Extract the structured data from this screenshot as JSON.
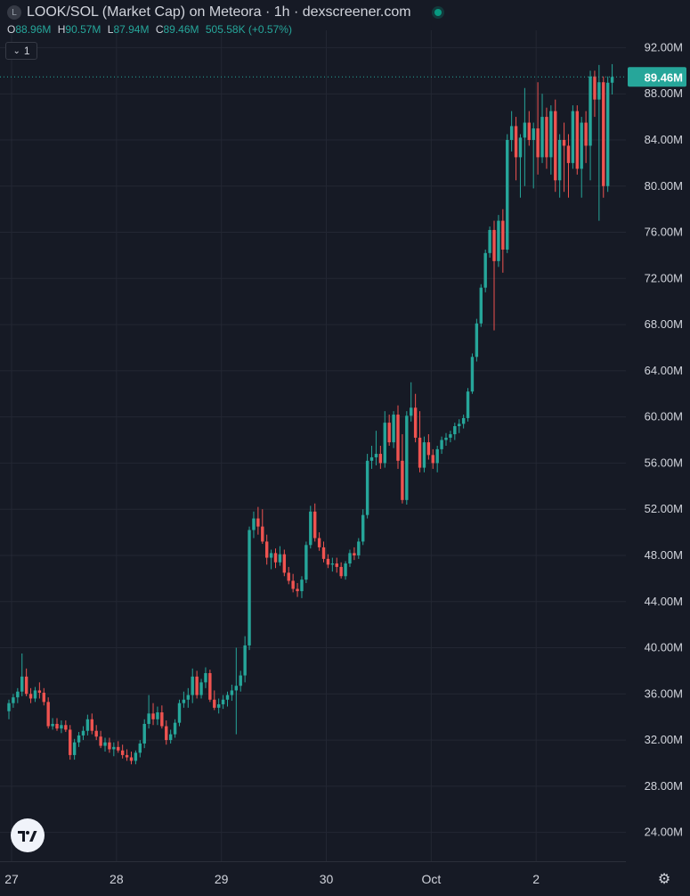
{
  "header": {
    "symbol_icon": "L",
    "title": "LOOK/SOL (Market Cap) on Meteora · 1h · dexscreener.com",
    "status_color": "#089981"
  },
  "ohlc": {
    "o_label": "O",
    "o_value": "88.96M",
    "h_label": "H",
    "h_value": "90.57M",
    "l_label": "L",
    "l_value": "87.94M",
    "c_label": "C",
    "c_value": "89.46M",
    "change": "505.58K (+0.57%)"
  },
  "indicator_toggle": {
    "count": "1",
    "icon": "chevron-down-icon"
  },
  "logo": {
    "icon": "tradingview-logo-icon"
  },
  "settings": {
    "icon": "gear-icon"
  },
  "chart_data": {
    "type": "candlestick",
    "colors": {
      "up": "#26a69a",
      "down": "#ef5350",
      "background": "#161a25",
      "grid": "#232733",
      "last_price_label": "#26a69a"
    },
    "yaxis": {
      "unit": "M",
      "ylim": [
        21.5,
        93.5
      ],
      "ticks": [
        24,
        28,
        32,
        36,
        40,
        44,
        48,
        52,
        56,
        60,
        64,
        68,
        72,
        76,
        80,
        84,
        88,
        92
      ],
      "tick_labels": [
        "24.00M",
        "28.00M",
        "32.00M",
        "36.00M",
        "40.00M",
        "44.00M",
        "48.00M",
        "52.00M",
        "56.00M",
        "60.00M",
        "64.00M",
        "68.00M",
        "72.00M",
        "76.00M",
        "80.00M",
        "84.00M",
        "88.00M",
        "92.00M"
      ],
      "position": "right"
    },
    "xaxis": {
      "ticks": [
        {
          "label": "27",
          "index": 0
        },
        {
          "label": "28",
          "index": 24
        },
        {
          "label": "29",
          "index": 48
        },
        {
          "label": "30",
          "index": 72
        },
        {
          "label": "Oct",
          "index": 96
        },
        {
          "label": "2",
          "index": 120
        }
      ]
    },
    "last_price": {
      "value": 89.46,
      "label": "89.46M"
    },
    "grid": true,
    "candles": [
      [
        34.5,
        35.5,
        33.8,
        35.2
      ],
      [
        35.2,
        36.0,
        34.8,
        35.7
      ],
      [
        35.7,
        36.5,
        35.2,
        36.2
      ],
      [
        36.2,
        39.5,
        35.8,
        37.5
      ],
      [
        37.5,
        38.2,
        35.8,
        36.0
      ],
      [
        36.0,
        36.5,
        35.2,
        35.6
      ],
      [
        35.6,
        36.6,
        35.3,
        36.3
      ],
      [
        36.3,
        37.0,
        35.6,
        36.1
      ],
      [
        36.1,
        36.5,
        35.0,
        35.3
      ],
      [
        35.3,
        35.7,
        33.0,
        33.2
      ],
      [
        33.2,
        33.9,
        32.9,
        33.4
      ],
      [
        33.4,
        33.9,
        32.8,
        33.0
      ],
      [
        33.0,
        33.7,
        32.6,
        33.3
      ],
      [
        33.3,
        33.7,
        32.7,
        32.9
      ],
      [
        32.9,
        33.3,
        30.3,
        30.7
      ],
      [
        30.7,
        32.1,
        30.3,
        31.8
      ],
      [
        31.8,
        32.7,
        31.4,
        32.4
      ],
      [
        32.4,
        33.2,
        32.0,
        32.8
      ],
      [
        32.8,
        34.2,
        32.4,
        33.8
      ],
      [
        33.8,
        34.3,
        32.5,
        32.8
      ],
      [
        32.8,
        33.3,
        32.0,
        32.3
      ],
      [
        32.3,
        32.8,
        31.3,
        31.5
      ],
      [
        31.5,
        32.2,
        31.0,
        31.8
      ],
      [
        31.8,
        32.2,
        30.9,
        31.2
      ],
      [
        31.2,
        31.8,
        30.6,
        31.4
      ],
      [
        31.4,
        31.9,
        30.9,
        31.1
      ],
      [
        31.1,
        31.6,
        30.4,
        30.7
      ],
      [
        30.7,
        31.2,
        30.2,
        30.5
      ],
      [
        30.5,
        31.0,
        29.9,
        30.2
      ],
      [
        30.2,
        31.1,
        29.9,
        30.9
      ],
      [
        30.9,
        32.0,
        30.5,
        31.7
      ],
      [
        31.7,
        33.8,
        31.3,
        33.4
      ],
      [
        33.4,
        35.9,
        33.0,
        34.3
      ],
      [
        34.3,
        35.2,
        33.3,
        33.8
      ],
      [
        33.8,
        34.9,
        33.3,
        34.4
      ],
      [
        34.4,
        35.0,
        33.0,
        33.2
      ],
      [
        33.2,
        33.7,
        31.6,
        32.0
      ],
      [
        32.0,
        32.9,
        31.7,
        32.5
      ],
      [
        32.5,
        33.8,
        32.2,
        33.5
      ],
      [
        33.5,
        35.5,
        33.2,
        35.2
      ],
      [
        35.2,
        36.2,
        34.8,
        35.5
      ],
      [
        35.5,
        36.5,
        34.8,
        35.9
      ],
      [
        35.9,
        38.2,
        35.2,
        37.5
      ],
      [
        37.5,
        38.0,
        35.6,
        35.9
      ],
      [
        35.9,
        37.3,
        35.6,
        37.0
      ],
      [
        37.0,
        38.3,
        36.5,
        37.8
      ],
      [
        37.8,
        38.1,
        35.3,
        35.5
      ],
      [
        35.5,
        36.3,
        34.6,
        34.8
      ],
      [
        34.8,
        35.6,
        34.3,
        35.1
      ],
      [
        35.1,
        35.9,
        34.7,
        35.5
      ],
      [
        35.5,
        36.2,
        34.9,
        35.9
      ],
      [
        35.9,
        36.8,
        35.4,
        36.3
      ],
      [
        36.3,
        40.0,
        32.5,
        36.7
      ],
      [
        36.7,
        38.0,
        36.2,
        37.6
      ],
      [
        37.6,
        41.0,
        37.0,
        40.2
      ],
      [
        40.2,
        50.5,
        39.8,
        50.2
      ],
      [
        50.2,
        51.8,
        49.5,
        51.2
      ],
      [
        51.2,
        52.2,
        49.8,
        50.5
      ],
      [
        50.5,
        52.0,
        49.0,
        49.2
      ],
      [
        49.2,
        49.8,
        47.2,
        47.8
      ],
      [
        47.8,
        48.5,
        46.8,
        48.2
      ],
      [
        48.2,
        48.6,
        46.9,
        47.4
      ],
      [
        47.4,
        48.8,
        47.1,
        48.1
      ],
      [
        48.1,
        48.5,
        46.2,
        46.5
      ],
      [
        46.5,
        47.0,
        45.5,
        45.8
      ],
      [
        45.8,
        46.4,
        44.8,
        45.1
      ],
      [
        45.1,
        45.6,
        44.4,
        44.9
      ],
      [
        44.9,
        46.2,
        44.3,
        45.9
      ],
      [
        45.9,
        49.2,
        45.6,
        48.9
      ],
      [
        48.9,
        52.3,
        48.6,
        51.8
      ],
      [
        51.8,
        52.5,
        49.2,
        49.5
      ],
      [
        49.5,
        50.0,
        48.4,
        48.7
      ],
      [
        48.7,
        49.2,
        47.4,
        47.7
      ],
      [
        47.7,
        48.1,
        46.9,
        47.2
      ],
      [
        47.2,
        47.8,
        46.6,
        47.3
      ],
      [
        47.3,
        47.8,
        46.5,
        47.0
      ],
      [
        47.0,
        47.4,
        46.0,
        46.2
      ],
      [
        46.2,
        47.5,
        45.9,
        47.3
      ],
      [
        47.3,
        48.5,
        47.0,
        48.2
      ],
      [
        48.2,
        48.7,
        47.6,
        48.0
      ],
      [
        48.0,
        49.5,
        47.7,
        49.2
      ],
      [
        49.2,
        52.0,
        48.9,
        51.5
      ],
      [
        51.5,
        56.8,
        51.2,
        56.2
      ],
      [
        56.2,
        57.5,
        55.5,
        56.5
      ],
      [
        56.5,
        58.8,
        55.8,
        56.8
      ],
      [
        56.8,
        57.5,
        55.5,
        56.0
      ],
      [
        56.0,
        60.5,
        55.6,
        59.5
      ],
      [
        59.5,
        60.2,
        57.5,
        57.8
      ],
      [
        57.8,
        60.5,
        57.3,
        60.2
      ],
      [
        60.2,
        61.0,
        55.5,
        56.2
      ],
      [
        56.2,
        58.5,
        52.5,
        52.8
      ],
      [
        52.8,
        60.5,
        52.4,
        60.1
      ],
      [
        60.1,
        63.0,
        59.6,
        60.8
      ],
      [
        60.8,
        62.0,
        57.8,
        58.2
      ],
      [
        58.2,
        60.5,
        55.2,
        55.6
      ],
      [
        55.6,
        58.3,
        55.2,
        57.8
      ],
      [
        57.8,
        58.5,
        56.3,
        56.7
      ],
      [
        56.7,
        57.2,
        55.5,
        56.0
      ],
      [
        56.0,
        57.5,
        55.2,
        57.2
      ],
      [
        57.2,
        58.3,
        56.8,
        58.0
      ],
      [
        58.0,
        58.6,
        57.5,
        58.2
      ],
      [
        58.2,
        58.8,
        57.8,
        58.5
      ],
      [
        58.5,
        59.5,
        58.0,
        59.2
      ],
      [
        59.2,
        59.8,
        58.6,
        59.4
      ],
      [
        59.4,
        60.2,
        59.0,
        59.9
      ],
      [
        59.9,
        62.5,
        59.6,
        62.2
      ],
      [
        62.2,
        65.5,
        62.0,
        65.2
      ],
      [
        65.2,
        68.5,
        64.8,
        68.1
      ],
      [
        68.1,
        71.5,
        67.8,
        71.2
      ],
      [
        71.2,
        74.5,
        70.8,
        74.2
      ],
      [
        74.2,
        76.5,
        73.8,
        76.2
      ],
      [
        76.2,
        77.0,
        67.5,
        73.5
      ],
      [
        73.5,
        77.5,
        73.0,
        77.0
      ],
      [
        77.0,
        78.0,
        72.5,
        74.5
      ],
      [
        74.5,
        84.5,
        74.2,
        84.0
      ],
      [
        84.0,
        86.5,
        83.0,
        85.2
      ],
      [
        85.2,
        86.0,
        80.5,
        82.5
      ],
      [
        82.5,
        84.5,
        79.0,
        84.2
      ],
      [
        84.2,
        88.5,
        80.0,
        85.5
      ],
      [
        85.5,
        86.5,
        83.5,
        84.0
      ],
      [
        84.0,
        85.5,
        79.8,
        85.0
      ],
      [
        85.0,
        89.0,
        81.0,
        82.5
      ],
      [
        82.5,
        88.0,
        82.0,
        86.0
      ],
      [
        86.0,
        86.8,
        81.5,
        82.5
      ],
      [
        82.5,
        87.0,
        81.0,
        86.5
      ],
      [
        86.5,
        87.5,
        79.5,
        80.5
      ],
      [
        80.5,
        84.5,
        79.0,
        84.0
      ],
      [
        84.0,
        85.5,
        79.5,
        83.5
      ],
      [
        83.5,
        84.5,
        79.0,
        82.0
      ],
      [
        82.0,
        87.0,
        81.5,
        86.5
      ],
      [
        86.5,
        87.0,
        81.0,
        81.5
      ],
      [
        81.5,
        86.0,
        79.0,
        85.5
      ],
      [
        85.5,
        86.5,
        82.0,
        83.5
      ],
      [
        83.5,
        90.0,
        80.5,
        89.5
      ],
      [
        89.5,
        90.0,
        86.0,
        87.5
      ],
      [
        87.5,
        90.5,
        77.0,
        89.0
      ],
      [
        89.0,
        89.5,
        79.0,
        80.0
      ],
      [
        80.0,
        89.5,
        79.5,
        88.96
      ],
      [
        88.96,
        90.57,
        87.94,
        89.46
      ]
    ]
  }
}
